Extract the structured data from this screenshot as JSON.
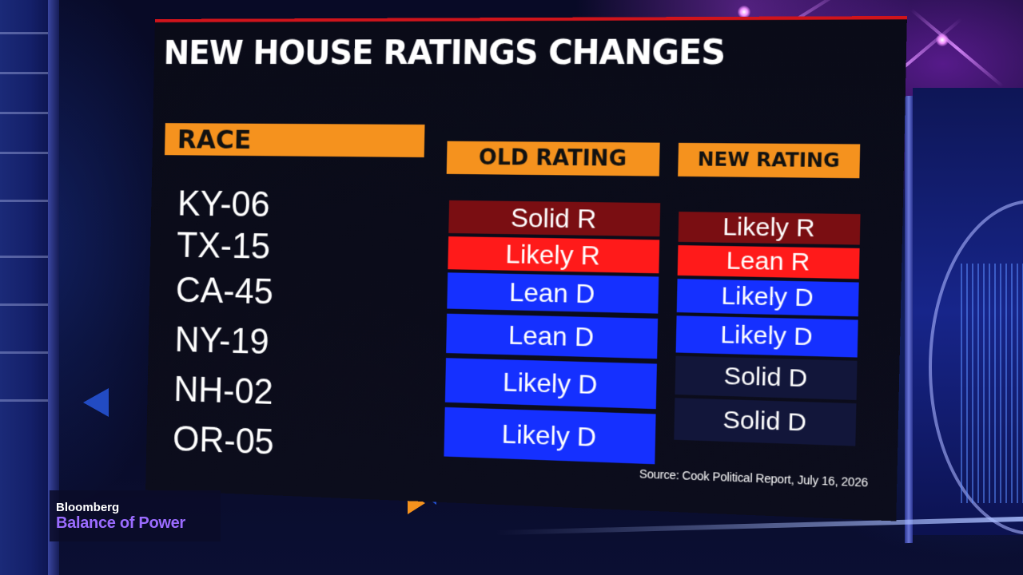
{
  "graphic": {
    "title": "NEW HOUSE RATINGS CHANGES",
    "headers": {
      "race": "RACE",
      "old_rating": "OLD RATING",
      "new_rating": "NEW RATING"
    },
    "rows": [
      {
        "race": "KY-06",
        "old": "Solid R",
        "new": "Likely R"
      },
      {
        "race": "TX-15",
        "old": "Likely R",
        "new": "Lean R"
      },
      {
        "race": "CA-45",
        "old": "Lean D",
        "new": "Likely D"
      },
      {
        "race": "NY-19",
        "old": "Lean D",
        "new": "Likely D"
      },
      {
        "race": "NH-02",
        "old": "Likely D",
        "new": "Solid D"
      },
      {
        "race": "OR-05",
        "old": "Likely D",
        "new": "Solid D"
      }
    ],
    "source": "Source: Cook Political Report, July 16, 2026"
  },
  "rating_colors": {
    "Solid R": "#7a0e12",
    "Likely R": "#ff1a1a",
    "Lean R": "#ff1a1a",
    "Lean D": "#1530ff",
    "Likely D": "#1530ff",
    "Solid D": "#12163a"
  },
  "new_rating_colors": {
    "Likely R": "#7a0e12",
    "Lean R": "#ff1a1a",
    "Likely D": "#1530ff",
    "Solid D": "#12163a"
  },
  "bug": {
    "brand": "Bloomberg",
    "show": "Balance of Power"
  },
  "colors": {
    "header_orange": "#f5921e",
    "rule_red": "#d0141b",
    "show_purple": "#9b6cff"
  }
}
